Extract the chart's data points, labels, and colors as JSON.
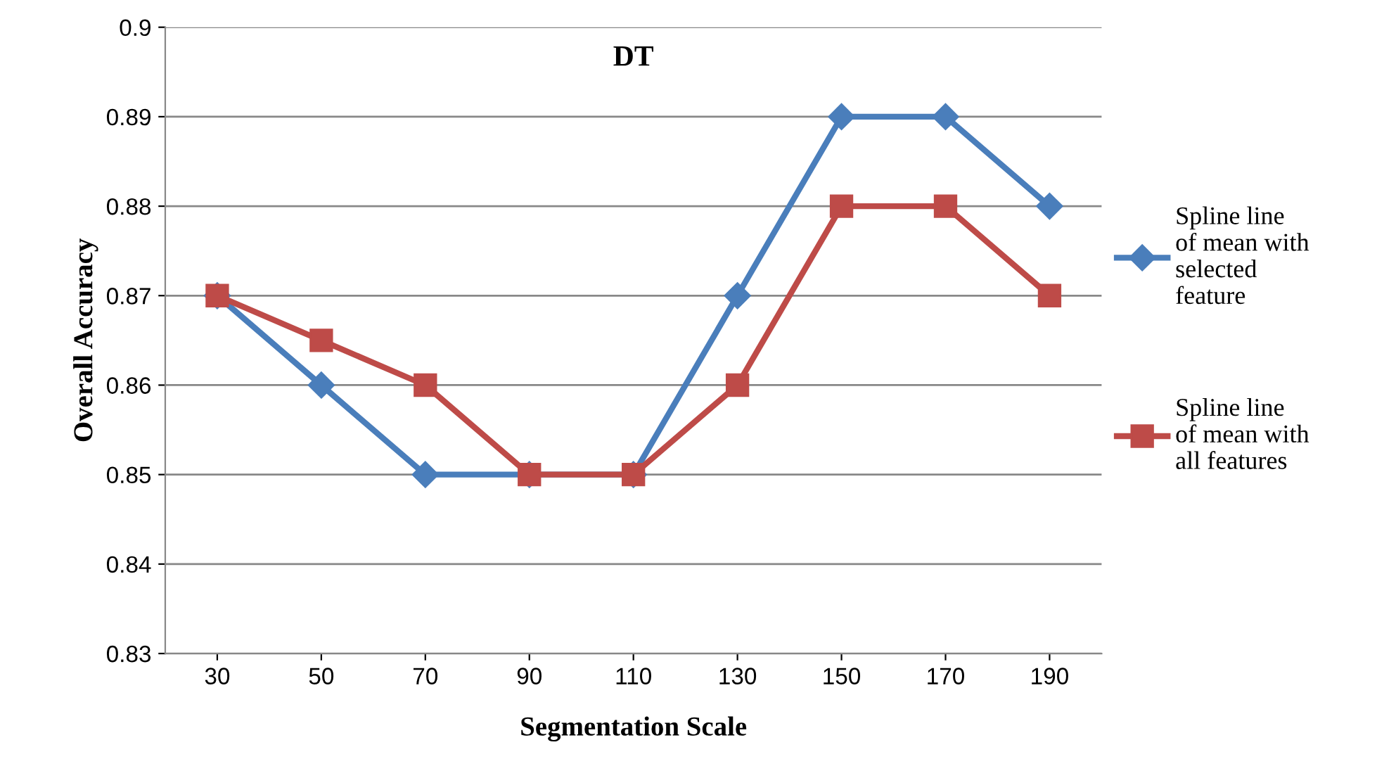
{
  "chart_data": {
    "type": "line",
    "title": "DT",
    "xlabel": "Segmentation Scale",
    "ylabel": "Overall Accuracy",
    "categories": [
      "30",
      "50",
      "70",
      "90",
      "110",
      "130",
      "150",
      "170",
      "190"
    ],
    "series": [
      {
        "name": "Spline line of mean with selected feature",
        "color": "#4a7ebb",
        "marker": "diamond",
        "values": [
          0.87,
          0.86,
          0.85,
          0.85,
          0.85,
          0.87,
          0.89,
          0.89,
          0.88
        ]
      },
      {
        "name": "Spline line of mean with all features",
        "color": "#be4b48",
        "marker": "square",
        "values": [
          0.87,
          0.865,
          0.86,
          0.85,
          0.85,
          0.86,
          0.88,
          0.88,
          0.87
        ]
      }
    ],
    "ylim": [
      0.83,
      0.9
    ],
    "yticks": [
      0.83,
      0.84,
      0.85,
      0.86,
      0.87,
      0.88,
      0.89,
      0.9
    ],
    "grid": "y",
    "legend": "right",
    "line_style": "solid"
  }
}
